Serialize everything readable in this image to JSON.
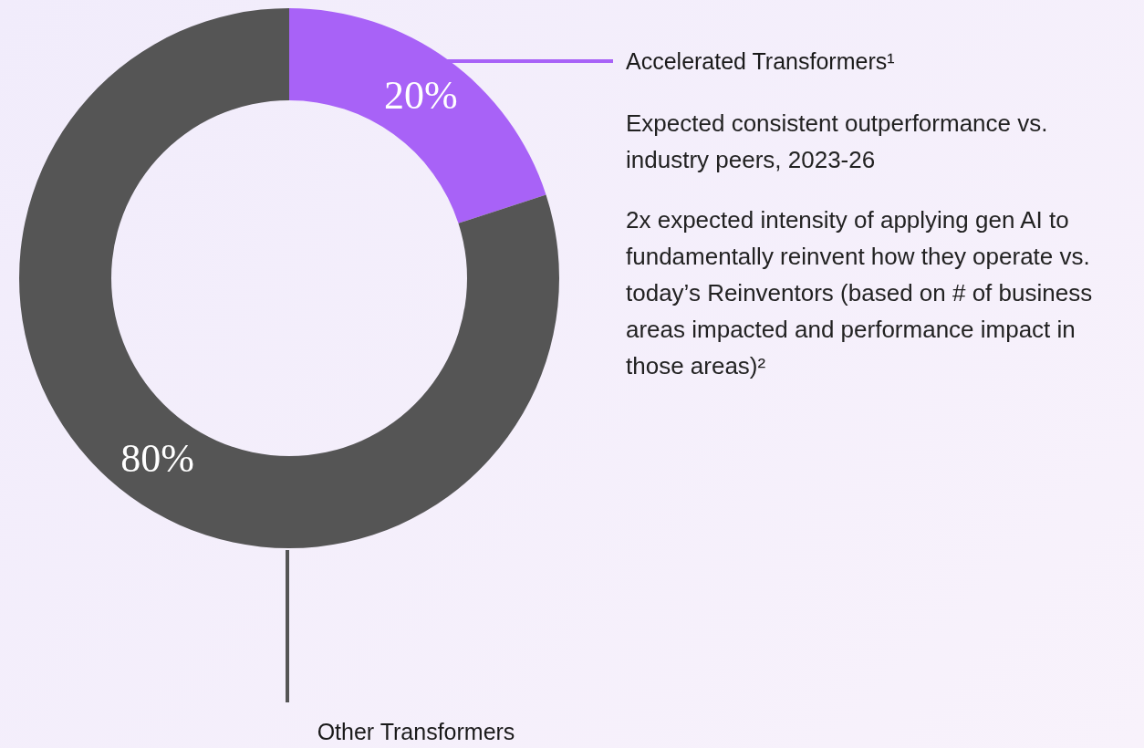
{
  "chart_data": {
    "type": "donut",
    "categories": [
      "Accelerated Transformers¹",
      "Other Transformers"
    ],
    "values": [
      20,
      80
    ],
    "colors": [
      "#a862f7",
      "#555555"
    ],
    "value_labels": [
      "20%",
      "80%"
    ],
    "legend": false,
    "annotations": [
      "Expected consistent outperformance vs. industry peers, 2023-26",
      "2x expected intensity of applying gen AI to fundamentally reinvent how they operate vs. today’s Reinventors (based on # of business areas impacted and performance impact in those areas)²"
    ]
  }
}
